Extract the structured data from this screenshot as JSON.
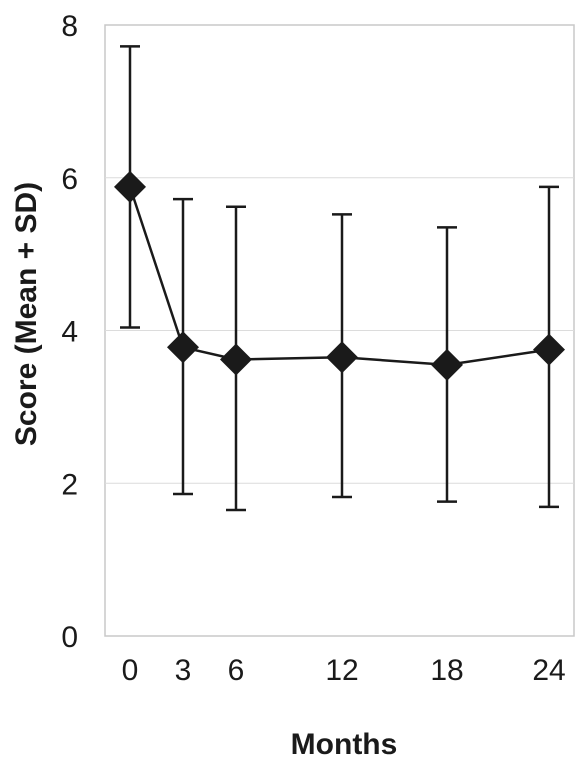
{
  "chart_data": {
    "type": "line",
    "title": "",
    "xlabel": "Months",
    "ylabel": "Score (Mean + SD)",
    "ylim": [
      0,
      8
    ],
    "yticks": [
      0,
      2,
      4,
      6,
      8
    ],
    "x": [
      0,
      3,
      6,
      12,
      18,
      24
    ],
    "x_tick_labels": [
      "0",
      "3",
      "6",
      "12",
      "18",
      "24"
    ],
    "series": [
      {
        "mean": [
          5.88,
          3.78,
          3.62,
          3.65,
          3.55,
          3.75
        ],
        "upper": [
          7.72,
          5.72,
          5.62,
          5.52,
          5.35,
          5.88
        ],
        "lower": [
          4.04,
          1.86,
          1.65,
          1.82,
          1.76,
          1.69
        ]
      }
    ],
    "grid": "horizontal",
    "marker": "diamond",
    "colors": {
      "series": "#1a1a1a",
      "grid": "#dcdcdc",
      "frame": "#c8c8c8"
    }
  }
}
